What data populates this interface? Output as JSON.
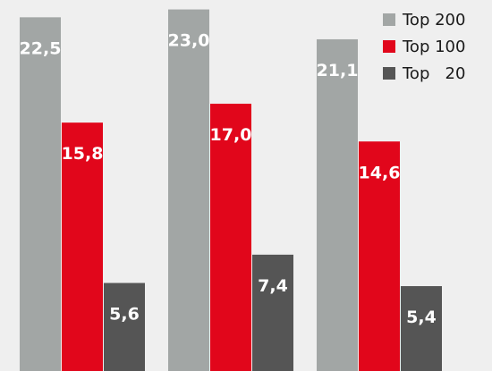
{
  "chart_data": {
    "type": "bar",
    "categories": [
      "",
      "",
      ""
    ],
    "series": [
      {
        "name": "Top 200",
        "values": [
          22.5,
          23.0,
          21.1
        ],
        "labels": [
          "22,5",
          "23,0",
          "21,1"
        ],
        "color": "#a2a6a5"
      },
      {
        "name": "Top 100",
        "values": [
          15.8,
          17.0,
          14.6
        ],
        "labels": [
          "15,8",
          "17,0",
          "14,6"
        ],
        "color": "#e1061b"
      },
      {
        "name": "Top   20",
        "values": [
          5.6,
          7.4,
          5.4
        ],
        "labels": [
          "5,6",
          "7,4",
          "5,4"
        ],
        "color": "#555555"
      }
    ],
    "ylim": [
      0,
      23.6
    ],
    "grid": false,
    "legend_position": "top-right",
    "title": "",
    "xlabel": "",
    "ylabel": ""
  },
  "colors": {
    "background": "#efefef",
    "label_text": "#ffffff",
    "legend_text": "#1a1a1a"
  }
}
